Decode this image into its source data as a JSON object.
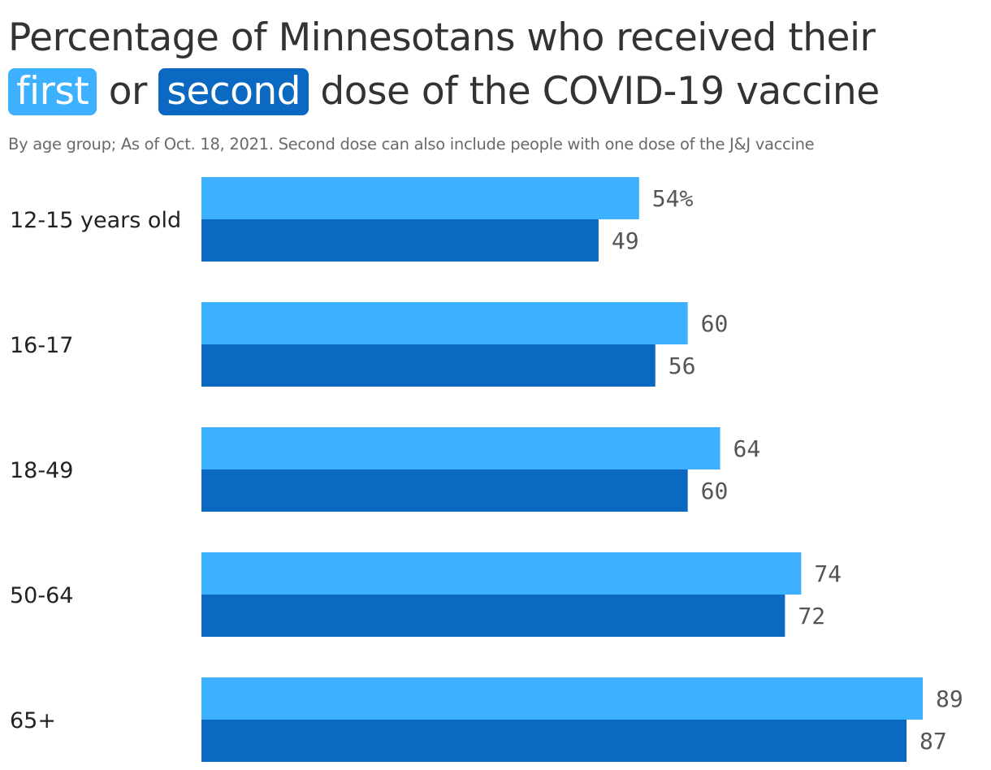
{
  "title": {
    "line1": "Percentage of Minnesotans who received their",
    "hl_first": "first",
    "or": "or",
    "hl_second": "second",
    "rest": "dose of the COVID-19 vaccine"
  },
  "subtitle": "By age group; As of Oct. 18, 2021. Second dose can also include people with one dose of the J&J vaccine",
  "colors": {
    "first": "#3db1ff",
    "second": "#0b69c1"
  },
  "chart_data": {
    "type": "bar",
    "orientation": "horizontal",
    "categories": [
      "12-15 years old",
      "16-17",
      "18-49",
      "50-64",
      "65+"
    ],
    "series": [
      {
        "name": "first",
        "values": [
          54,
          60,
          64,
          74,
          89
        ]
      },
      {
        "name": "second",
        "values": [
          49,
          56,
          60,
          72,
          87
        ]
      }
    ],
    "value_labels": [
      [
        "54%",
        "60",
        "64",
        "74",
        "89"
      ],
      [
        "49",
        "56",
        "60",
        "72",
        "87"
      ]
    ],
    "xlim": [
      0,
      89
    ],
    "grid": false,
    "legend": "in-title"
  }
}
